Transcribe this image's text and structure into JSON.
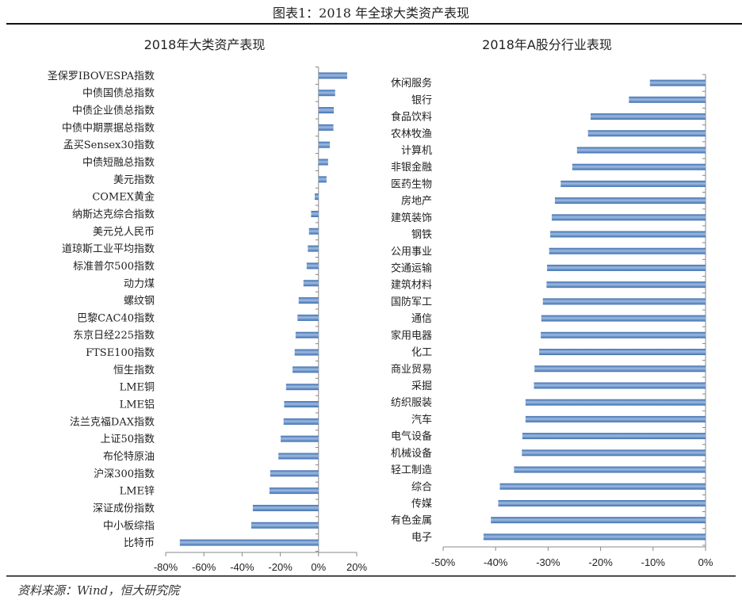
{
  "figure": {
    "title": "图表1：2018 年全球大类资产表现",
    "source": "资料来源：Wind，恒大研究院"
  },
  "colors": {
    "bar": "#4f81bd",
    "bar_highlight": "#9dbbe3",
    "axis": "#888888"
  },
  "chart_data": [
    {
      "type": "bar",
      "orientation": "horizontal",
      "title": "2018年大类资产表现",
      "xlabel": "",
      "ylabel": "",
      "xlim": [
        -0.8,
        0.2
      ],
      "x_ticks": [
        "-80%",
        "-60%",
        "-40%",
        "-20%",
        "0%",
        "20%"
      ],
      "tick_values": [
        -0.8,
        -0.6,
        -0.4,
        -0.2,
        0,
        0.2
      ],
      "grid": false,
      "categories": [
        "圣保罗IBOVESPA指数",
        "中债国债总指数",
        "中债企业债总指数",
        "中债中期票据总指数",
        "孟买Sensex30指数",
        "中债短融总指数",
        "美元指数",
        "COMEX黄金",
        "纳斯达克综合指数",
        "美元兑人民币",
        "道琼斯工业平均指数",
        "标准普尔500指数",
        "动力煤",
        "螺纹钢",
        "巴黎CAC40指数",
        "东京日经225指数",
        "FTSE100指数",
        "恒生指数",
        "LME铜",
        "LME铝",
        "法兰克福DAX指数",
        "上证50指数",
        "布伦特原油",
        "沪深300指数",
        "LME锌",
        "深证成份指数",
        "中小板综指",
        "比特币"
      ],
      "values": [
        0.15,
        0.087,
        0.08,
        0.078,
        0.059,
        0.05,
        0.042,
        -0.02,
        -0.039,
        -0.05,
        -0.056,
        -0.062,
        -0.079,
        -0.104,
        -0.11,
        -0.12,
        -0.125,
        -0.136,
        -0.17,
        -0.18,
        -0.183,
        -0.198,
        -0.21,
        -0.253,
        -0.257,
        -0.344,
        -0.352,
        -0.726
      ]
    },
    {
      "type": "bar",
      "orientation": "horizontal",
      "title": "2018年A股分行业表现",
      "xlabel": "",
      "ylabel": "",
      "xlim": [
        -0.5,
        0
      ],
      "x_ticks": [
        "-50%",
        "-40%",
        "-30%",
        "-20%",
        "-10%",
        "0%"
      ],
      "tick_values": [
        -0.5,
        -0.4,
        -0.3,
        -0.2,
        -0.1,
        0
      ],
      "grid": false,
      "categories": [
        "休闲服务",
        "银行",
        "食品饮料",
        "农林牧渔",
        "计算机",
        "非银金融",
        "医药生物",
        "房地产",
        "建筑装饰",
        "钢铁",
        "公用事业",
        "交通运输",
        "建筑材料",
        "国防军工",
        "通信",
        "家用电器",
        "化工",
        "商业贸易",
        "采掘",
        "纺织服装",
        "汽车",
        "电气设备",
        "机械设备",
        "轻工制造",
        "综合",
        "传媒",
        "有色金属",
        "电子"
      ],
      "values": [
        -0.106,
        -0.146,
        -0.219,
        -0.224,
        -0.245,
        -0.254,
        -0.276,
        -0.287,
        -0.293,
        -0.296,
        -0.298,
        -0.302,
        -0.303,
        -0.31,
        -0.313,
        -0.314,
        -0.317,
        -0.326,
        -0.327,
        -0.343,
        -0.343,
        -0.349,
        -0.35,
        -0.365,
        -0.392,
        -0.395,
        -0.409,
        -0.423
      ]
    }
  ]
}
